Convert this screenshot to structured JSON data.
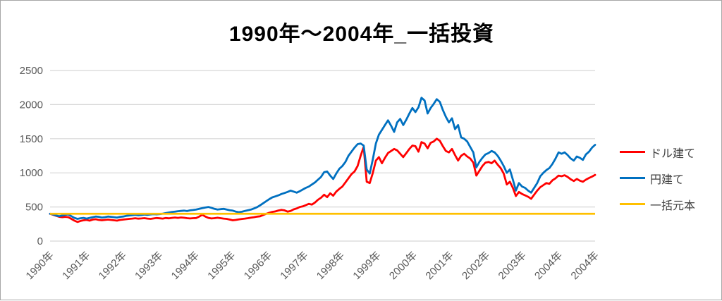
{
  "title": "1990年〜2004年_一括投資",
  "colors": {
    "grid": "#d6d6d6",
    "axis_text": "#595959",
    "legend_text": "#404040",
    "chart_border": "#a6a6a6",
    "series_red": "#ff0000",
    "series_blue": "#0070c0",
    "series_gold": "#ffc000"
  },
  "chart_data": {
    "type": "line",
    "title": "1990年〜2004年_一括投資",
    "x_labels": [
      "1990年",
      "1991年",
      "1992年",
      "1993年",
      "1994年",
      "1995年",
      "1996年",
      "1997年",
      "1998年",
      "1999年",
      "2000年",
      "2001年",
      "2002年",
      "2003年",
      "2004年",
      "2004年"
    ],
    "x_unit": "monthly, Jan 1990 - Dec 2004",
    "y_ticks": [
      0,
      500,
      1000,
      1500,
      2000,
      2500
    ],
    "ylim": [
      0,
      2500
    ],
    "grid": true,
    "legend_position": "right",
    "series": [
      {
        "name": "ドル建て",
        "color": "#ff0000",
        "values": [
          400,
          385,
          370,
          355,
          350,
          355,
          350,
          325,
          300,
          280,
          295,
          305,
          310,
          300,
          315,
          320,
          310,
          305,
          310,
          315,
          310,
          305,
          300,
          310,
          315,
          320,
          325,
          330,
          335,
          328,
          332,
          336,
          330,
          325,
          332,
          338,
          334,
          330,
          338,
          334,
          340,
          345,
          340,
          346,
          342,
          336,
          332,
          336,
          338,
          360,
          385,
          360,
          340,
          332,
          336,
          342,
          336,
          330,
          325,
          315,
          305,
          310,
          318,
          324,
          330,
          336,
          344,
          350,
          358,
          364,
          382,
          400,
          415,
          428,
          435,
          448,
          458,
          450,
          432,
          442,
          465,
          478,
          500,
          508,
          527,
          545,
          535,
          565,
          605,
          635,
          680,
          645,
          700,
          665,
          725,
          765,
          800,
          860,
          920,
          980,
          1020,
          1100,
          1250,
          1380,
          870,
          850,
          1000,
          1180,
          1230,
          1140,
          1220,
          1290,
          1320,
          1350,
          1330,
          1280,
          1230,
          1290,
          1350,
          1400,
          1390,
          1310,
          1450,
          1430,
          1360,
          1440,
          1460,
          1500,
          1470,
          1390,
          1320,
          1300,
          1350,
          1260,
          1180,
          1250,
          1280,
          1240,
          1210,
          1150,
          960,
          1030,
          1100,
          1150,
          1160,
          1140,
          1180,
          1120,
          1070,
          990,
          830,
          870,
          780,
          660,
          720,
          690,
          670,
          650,
          620,
          680,
          740,
          790,
          820,
          850,
          840,
          890,
          920,
          960,
          950,
          965,
          940,
          905,
          880,
          910,
          885,
          870,
          900,
          925,
          945,
          970
        ]
      },
      {
        "name": "円建て",
        "color": "#0070c0",
        "values": [
          400,
          390,
          375,
          365,
          375,
          385,
          390,
          365,
          340,
          325,
          335,
          340,
          330,
          340,
          350,
          360,
          355,
          345,
          350,
          360,
          355,
          350,
          345,
          355,
          360,
          370,
          375,
          380,
          385,
          378,
          382,
          388,
          384,
          390,
          394,
          392,
          396,
          402,
          410,
          418,
          426,
          432,
          438,
          442,
          446,
          440,
          450,
          456,
          462,
          472,
          482,
          492,
          500,
          488,
          472,
          462,
          468,
          472,
          462,
          452,
          446,
          432,
          424,
          430,
          442,
          452,
          462,
          478,
          498,
          525,
          555,
          585,
          615,
          640,
          655,
          670,
          690,
          705,
          720,
          740,
          725,
          710,
          730,
          755,
          780,
          800,
          830,
          860,
          900,
          940,
          1010,
          1020,
          960,
          910,
          990,
          1060,
          1100,
          1160,
          1250,
          1310,
          1370,
          1420,
          1430,
          1400,
          1050,
          990,
          1200,
          1430,
          1560,
          1630,
          1700,
          1770,
          1690,
          1600,
          1740,
          1790,
          1700,
          1780,
          1870,
          1950,
          1890,
          1960,
          2100,
          2060,
          1870,
          1950,
          2010,
          2080,
          2040,
          1920,
          1820,
          1740,
          1800,
          1640,
          1700,
          1520,
          1500,
          1460,
          1380,
          1300,
          1080,
          1160,
          1220,
          1270,
          1290,
          1320,
          1300,
          1250,
          1180,
          1100,
          1000,
          1050,
          900,
          740,
          850,
          800,
          780,
          740,
          710,
          780,
          850,
          950,
          1000,
          1040,
          1070,
          1130,
          1210,
          1300,
          1280,
          1300,
          1260,
          1210,
          1180,
          1240,
          1220,
          1190,
          1270,
          1310,
          1370,
          1410
        ]
      },
      {
        "name": "一括元本",
        "color": "#ffc000",
        "constant": 400
      }
    ]
  }
}
